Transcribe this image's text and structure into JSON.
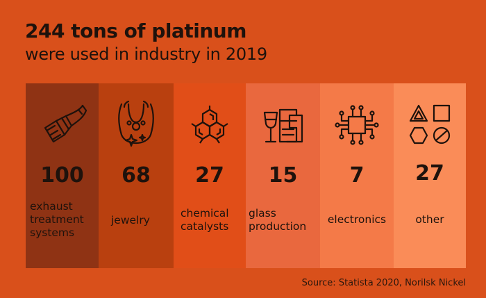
{
  "title": "244 tons of platinum",
  "subtitle": "were used in industry in 2019",
  "source": "Source: Statista 2020, Norilsk Nickel",
  "colors": {
    "background": "#d9501b",
    "col_exhaust": "#8f3314",
    "col_jewelry": "#b9400f",
    "col_chemical": "#e14e18",
    "col_glass": "#e9683e",
    "col_electronics": "#f47a48",
    "col_other": "#fa8c58"
  },
  "icons": [
    "exhaust-pipe-icon",
    "necklace-icon",
    "hexagon-molecule-icon",
    "glassware-icon",
    "microchip-icon",
    "shapes-icon"
  ],
  "chart_data": {
    "type": "bar",
    "title": "244 tons of platinum",
    "subtitle": "were used in industry in 2019",
    "unit": "tons",
    "categories": [
      "exhaust treatment systems",
      "jewelry",
      "chemical catalysts",
      "glass production",
      "electronics",
      "other"
    ],
    "values": [
      100,
      68,
      27,
      15,
      7,
      27
    ],
    "labels": [
      "exhaust\ntreatment\nsystems",
      "jewelry",
      "chemical\ncatalysts",
      "glass\nproduction",
      "electronics",
      "other"
    ]
  }
}
